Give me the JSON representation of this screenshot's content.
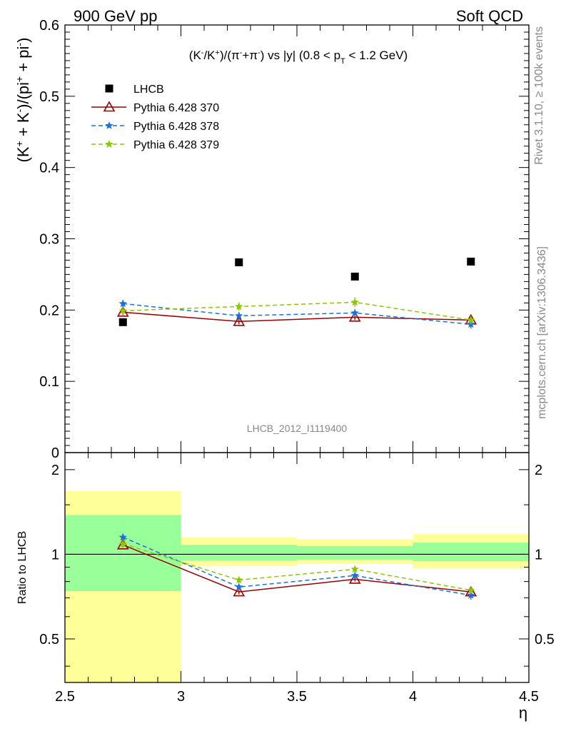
{
  "header": {
    "left": "900 GeV pp",
    "right": "Soft QCD"
  },
  "side": {
    "rivet": "Rivet 3.1.10, ≥ 100k events",
    "mcplots": "mcplots.cern.ch [arXiv:1306.3436]"
  },
  "watermark": "LHCB_2012_I1119400",
  "colors": {
    "data": "#000000",
    "p370": "#9b0000",
    "p378": "#1e6fd9",
    "p379": "#8cc800",
    "band_outer": "#ffff99",
    "band_inner": "#99ff99"
  },
  "chart_data": [
    {
      "type": "scatter",
      "panel": "main",
      "title": "(K⁻/K⁺)/(π⁻+π⁻) vs |y| (0.8 < p_T < 1.2 GeV)",
      "ylabel": "(K⁺ + K⁻)/(pi⁺ + pi⁻)",
      "xlim": [
        2.5,
        4.5
      ],
      "ylim": [
        0,
        0.6
      ],
      "yticks": [
        "0",
        "0.1",
        "0.2",
        "0.3",
        "0.4",
        "0.5",
        "0.6"
      ],
      "x": [
        2.75,
        3.25,
        3.75,
        4.25
      ],
      "series": [
        {
          "name": "LHCB",
          "key": "data",
          "marker": "square",
          "values": [
            0.183,
            0.267,
            0.247,
            0.268
          ],
          "errors": [
            0.003,
            0.003,
            0.003,
            0.003
          ]
        },
        {
          "name": "Pythia 6.428 370",
          "key": "p370",
          "marker": "triangle",
          "line": "solid",
          "values": [
            0.197,
            0.184,
            0.19,
            0.186
          ],
          "errors": [
            0.004,
            0.004,
            0.004,
            0.004
          ]
        },
        {
          "name": "Pythia 6.428 378",
          "key": "p378",
          "marker": "star",
          "line": "dashed",
          "values": [
            0.209,
            0.192,
            0.196,
            0.18
          ],
          "errors": [
            0.005,
            0.005,
            0.005,
            0.006
          ]
        },
        {
          "name": "Pythia 6.428 379",
          "key": "p379",
          "marker": "star",
          "line": "dashed",
          "values": [
            0.199,
            0.205,
            0.211,
            0.186
          ],
          "errors": [
            0.005,
            0.006,
            0.007,
            0.006
          ]
        }
      ]
    },
    {
      "type": "scatter",
      "panel": "ratio",
      "ylabel": "Ratio to LHCB",
      "xlabel": "η",
      "xlim": [
        2.5,
        4.5
      ],
      "ylim": [
        0.35,
        2.3
      ],
      "log_y": true,
      "yticks": [
        "0.5",
        "1",
        "2"
      ],
      "xticks": [
        "2.5",
        "3",
        "3.5",
        "4",
        "4.5"
      ],
      "bands": [
        {
          "x": [
            2.5,
            3.0
          ],
          "outer": [
            0.35,
            1.68
          ],
          "inner": [
            0.74,
            1.38
          ]
        },
        {
          "x": [
            3.0,
            3.5
          ],
          "outer": [
            0.91,
            1.15
          ],
          "inner": [
            0.95,
            1.08
          ]
        },
        {
          "x": [
            3.5,
            4.0
          ],
          "outer": [
            0.925,
            1.13
          ],
          "inner": [
            0.955,
            1.07
          ]
        },
        {
          "x": [
            4.0,
            4.5
          ],
          "outer": [
            0.89,
            1.18
          ],
          "inner": [
            0.945,
            1.1
          ]
        }
      ],
      "x": [
        2.75,
        3.25,
        3.75,
        4.25
      ],
      "series": [
        {
          "key": "p370",
          "marker": "triangle",
          "line": "solid",
          "values": [
            1.08,
            0.735,
            0.815,
            0.735
          ],
          "errors": [
            0.02,
            0.015,
            0.015,
            0.02
          ]
        },
        {
          "key": "p378",
          "marker": "star",
          "line": "dashed",
          "values": [
            1.15,
            0.765,
            0.84,
            0.715
          ],
          "errors": [
            0.025,
            0.02,
            0.02,
            0.025
          ]
        },
        {
          "key": "p379",
          "marker": "star",
          "line": "dashed",
          "values": [
            1.09,
            0.81,
            0.885,
            0.745
          ],
          "errors": [
            0.025,
            0.02,
            0.02,
            0.02
          ]
        }
      ]
    }
  ]
}
